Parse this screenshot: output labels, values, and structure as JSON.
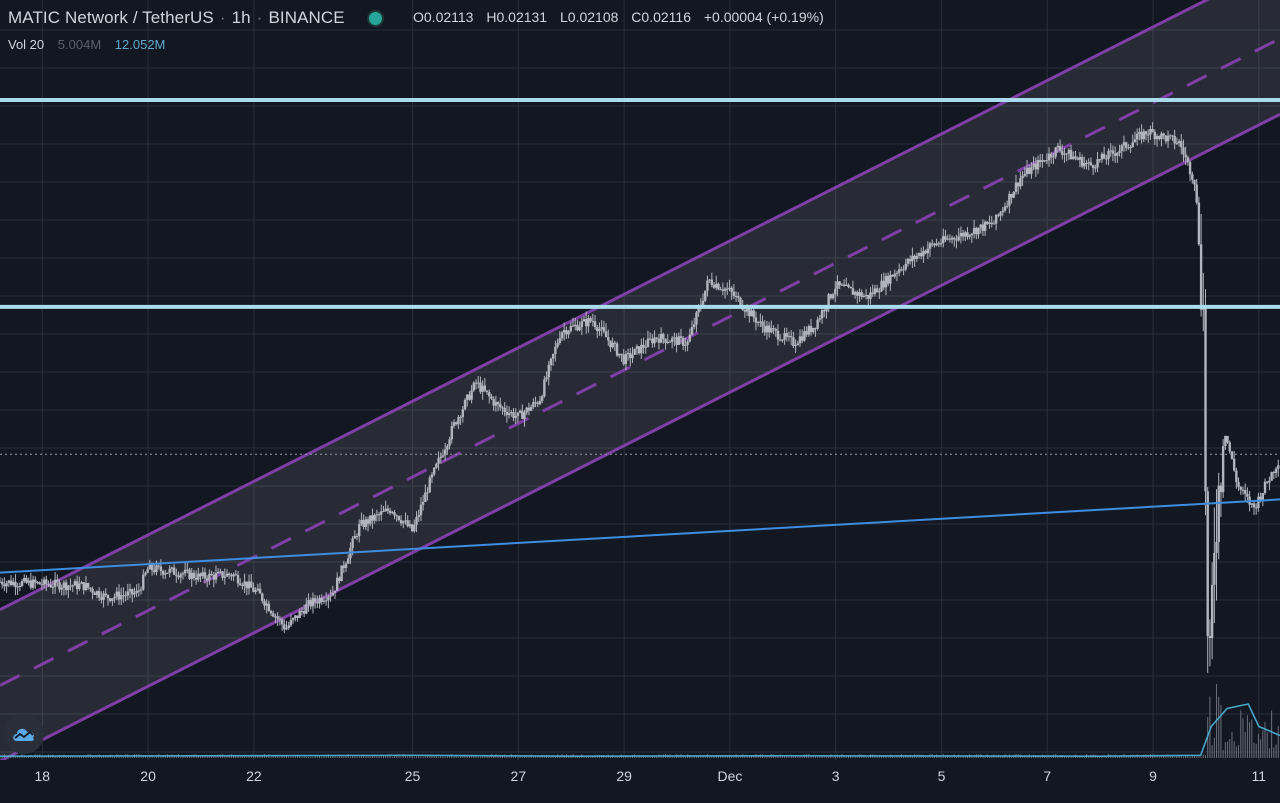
{
  "header": {
    "symbol": "MATIC Network / TetherUS",
    "interval": "1h",
    "exchange": "BINANCE",
    "status_color": "#26a69a"
  },
  "ohlc": {
    "o_label": "O",
    "o": "0.02113",
    "h_label": "H",
    "h": "0.02131",
    "l_label": "L",
    "l": "0.02108",
    "c_label": "C",
    "c": "0.02116",
    "change": "+0.00004 (+0.19%)"
  },
  "volume": {
    "label": "Vol 20",
    "value1": "5.004M",
    "value2": "12.052M"
  },
  "colors": {
    "background": "#131722",
    "grid": "#2a2e39",
    "candle": "#b2b5be",
    "channel": "#7e3fa6",
    "channel_fill": "rgba(255,255,255,0.09)",
    "horizontal_level": "#a8dcec",
    "trendline": "#3d8de0",
    "volume_ma": "#4aa6c8"
  },
  "logo_icon": "tradingview-cloud-icon",
  "chart_data": {
    "type": "candlestick",
    "x_ticks": [
      "18",
      "20",
      "22",
      "25",
      "27",
      "29",
      "Dec",
      "3",
      "5",
      "7",
      "9",
      "11"
    ],
    "x_tick_days": [
      0,
      2,
      4,
      7,
      9,
      11,
      13,
      15,
      17,
      19,
      21,
      23
    ],
    "x_range_days": [
      -0.8,
      23.4
    ],
    "y_range": [
      0.0142,
      0.0275
    ],
    "series_close": [
      [
        -0.8,
        0.01732
      ],
      [
        0.0,
        0.01728
      ],
      [
        0.8,
        0.01725
      ],
      [
        1.2,
        0.01705
      ],
      [
        1.8,
        0.01712
      ],
      [
        2.0,
        0.01755
      ],
      [
        2.6,
        0.01748
      ],
      [
        3.0,
        0.0174
      ],
      [
        3.6,
        0.01745
      ],
      [
        4.1,
        0.0171
      ],
      [
        4.6,
        0.0165
      ],
      [
        5.0,
        0.0169
      ],
      [
        5.5,
        0.01715
      ],
      [
        6.0,
        0.0183
      ],
      [
        6.6,
        0.0186
      ],
      [
        7.0,
        0.0182
      ],
      [
        7.3,
        0.019
      ],
      [
        7.8,
        0.0201
      ],
      [
        8.2,
        0.0208
      ],
      [
        8.6,
        0.0204
      ],
      [
        9.0,
        0.0202
      ],
      [
        9.4,
        0.0205
      ],
      [
        9.8,
        0.0217
      ],
      [
        10.4,
        0.0219
      ],
      [
        11.0,
        0.0212
      ],
      [
        11.6,
        0.0216
      ],
      [
        12.2,
        0.0215
      ],
      [
        12.6,
        0.0226
      ],
      [
        13.0,
        0.0224
      ],
      [
        13.6,
        0.0218
      ],
      [
        14.2,
        0.0215
      ],
      [
        14.6,
        0.0218
      ],
      [
        15.0,
        0.0225
      ],
      [
        15.6,
        0.0223
      ],
      [
        16.2,
        0.0228
      ],
      [
        16.8,
        0.0232
      ],
      [
        17.4,
        0.0234
      ],
      [
        18.0,
        0.0236
      ],
      [
        18.5,
        0.0244
      ],
      [
        19.2,
        0.0249
      ],
      [
        19.8,
        0.0246
      ],
      [
        20.4,
        0.0249
      ],
      [
        20.9,
        0.0252
      ],
      [
        21.5,
        0.025
      ],
      [
        21.8,
        0.0243
      ],
      [
        21.95,
        0.022
      ],
      [
        22.05,
        0.015
      ],
      [
        22.15,
        0.018
      ],
      [
        22.35,
        0.02
      ],
      [
        22.6,
        0.019
      ],
      [
        22.9,
        0.0186
      ],
      [
        23.4,
        0.0195
      ]
    ],
    "volume_ma": [
      [
        -0.8,
        0.02
      ],
      [
        7.0,
        0.03
      ],
      [
        10.0,
        0.02
      ],
      [
        14.0,
        0.025
      ],
      [
        20.0,
        0.02
      ],
      [
        21.9,
        0.03
      ],
      [
        22.1,
        0.35
      ],
      [
        22.4,
        0.55
      ],
      [
        22.8,
        0.6
      ],
      [
        23.0,
        0.35
      ],
      [
        23.4,
        0.25
      ]
    ],
    "channel": {
      "lower": [
        [
          -0.8,
          0.01418
        ],
        [
          23.4,
          0.0255
        ]
      ],
      "upper": [
        [
          -0.8,
          0.01683
        ],
        [
          23.4,
          0.02815
        ]
      ],
      "style": "filled parallel channel with dashed midline"
    },
    "horizontal_levels": [
      0.02575,
      0.02213
    ],
    "trendline": [
      [
        -0.8,
        0.01748
      ],
      [
        23.4,
        0.01876
      ]
    ],
    "last_price_line": 0.01955
  }
}
